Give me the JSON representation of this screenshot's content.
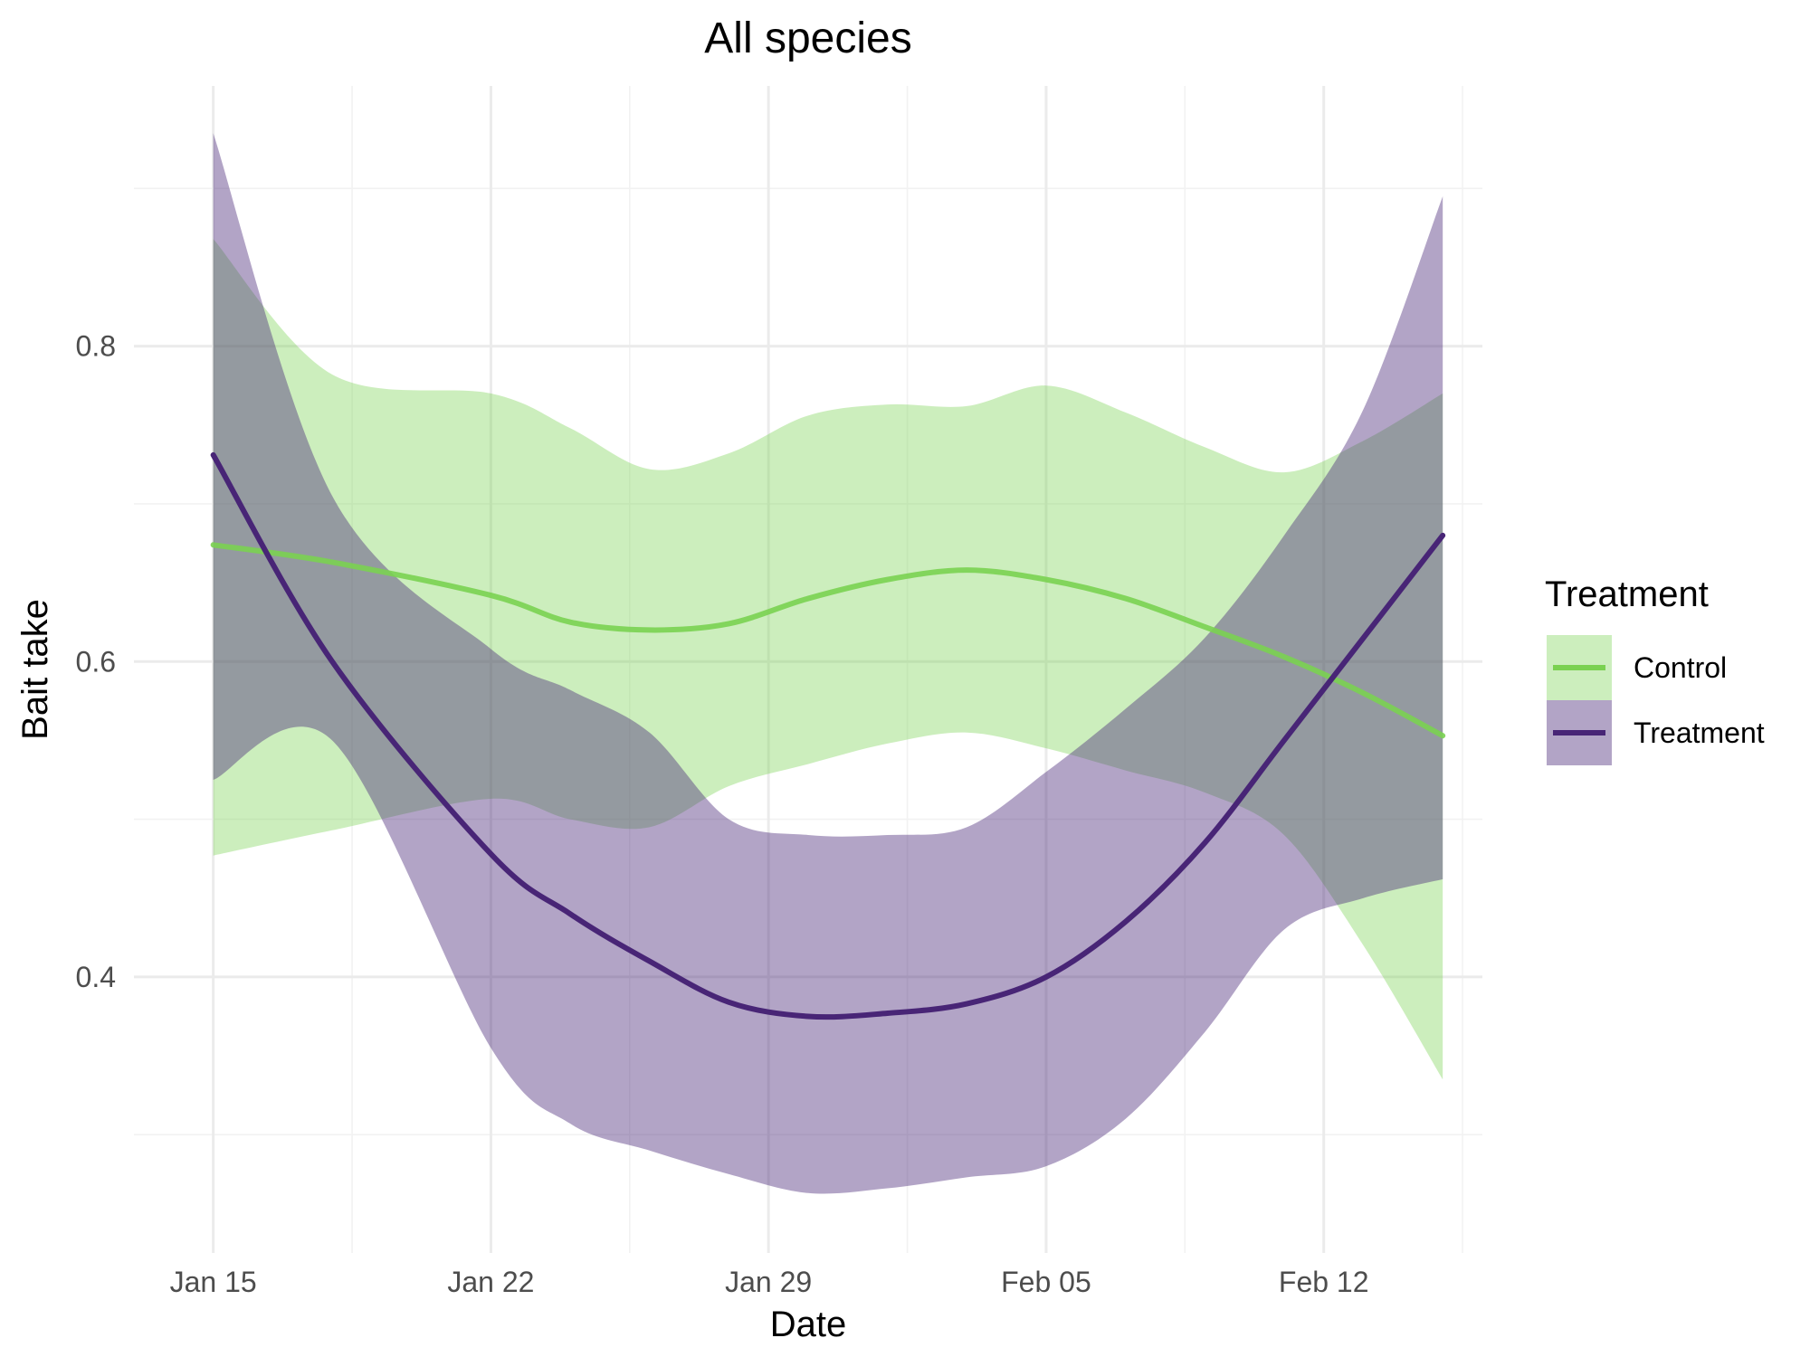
{
  "chart_data": {
    "type": "line",
    "title": "All species",
    "xlabel": "Date",
    "ylabel": "Bait take",
    "x_ticks": [
      "Jan 15",
      "Jan 22",
      "Jan 29",
      "Feb 05",
      "Feb 12"
    ],
    "x_tick_values": [
      "2023-01-15",
      "2023-01-22",
      "2023-01-29",
      "2023-02-05",
      "2023-02-12"
    ],
    "y_ticks": [
      "0.4",
      "0.6",
      "0.8"
    ],
    "y_tick_values": [
      0.4,
      0.6,
      0.8
    ],
    "xlim": [
      "2023-01-13",
      "2023-02-16"
    ],
    "ylim": [
      0.225,
      0.965
    ],
    "grid": true,
    "legend": {
      "title": "Treatment",
      "position": "right",
      "entries": [
        "Control",
        "Treatment"
      ]
    },
    "series": [
      {
        "name": "Control",
        "color": "#7ad151",
        "x": [
          "2023-01-15",
          "2023-01-18",
          "2023-01-22",
          "2023-01-24",
          "2023-01-26",
          "2023-01-28",
          "2023-01-30",
          "2023-02-01",
          "2023-02-03",
          "2023-02-05",
          "2023-02-07",
          "2023-02-09",
          "2023-02-11",
          "2023-02-13",
          "2023-02-15"
        ],
        "y": [
          0.674,
          0.663,
          0.642,
          0.625,
          0.62,
          0.624,
          0.64,
          0.652,
          0.658,
          0.652,
          0.64,
          0.622,
          0.603,
          0.58,
          0.553
        ],
        "lower": [
          0.477,
          0.493,
          0.513,
          0.5,
          0.495,
          0.521,
          0.535,
          0.548,
          0.555,
          0.545,
          0.531,
          0.517,
          0.49,
          0.42,
          0.335
        ],
        "upper": [
          0.868,
          0.782,
          0.77,
          0.748,
          0.722,
          0.732,
          0.756,
          0.763,
          0.762,
          0.775,
          0.758,
          0.736,
          0.72,
          0.74,
          0.77
        ]
      },
      {
        "name": "Treatment",
        "color": "#482576",
        "x": [
          "2023-01-15",
          "2023-01-18",
          "2023-01-22",
          "2023-01-24",
          "2023-01-26",
          "2023-01-28",
          "2023-01-30",
          "2023-02-01",
          "2023-02-03",
          "2023-02-05",
          "2023-02-07",
          "2023-02-09",
          "2023-02-11",
          "2023-02-13",
          "2023-02-15"
        ],
        "y": [
          0.731,
          0.6,
          0.478,
          0.44,
          0.41,
          0.384,
          0.375,
          0.377,
          0.383,
          0.4,
          0.435,
          0.485,
          0.55,
          0.615,
          0.68
        ],
        "lower": [
          0.525,
          0.55,
          0.355,
          0.307,
          0.29,
          0.275,
          0.263,
          0.266,
          0.273,
          0.28,
          0.31,
          0.365,
          0.43,
          0.45,
          0.462
        ],
        "upper": [
          0.935,
          0.705,
          0.608,
          0.582,
          0.555,
          0.5,
          0.49,
          0.49,
          0.495,
          0.53,
          0.57,
          0.615,
          0.68,
          0.76,
          0.895
        ]
      }
    ]
  }
}
